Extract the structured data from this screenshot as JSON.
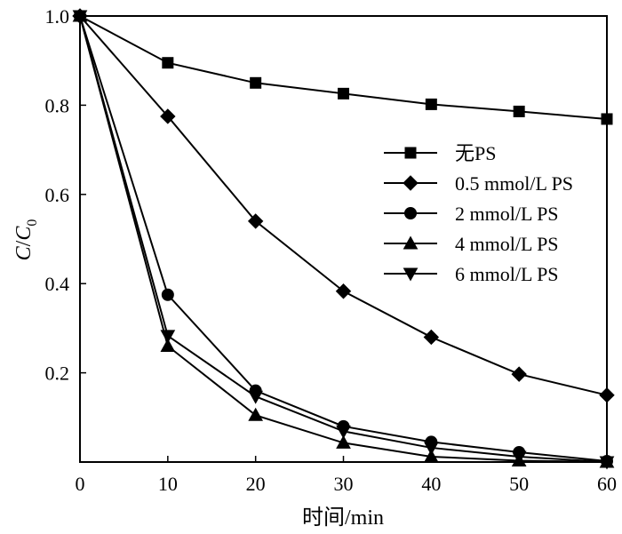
{
  "chart_data": {
    "type": "line",
    "xlabel": "时间/min",
    "ylabel_main": "C",
    "ylabel_slash": "/",
    "ylabel_denominator": "C",
    "ylabel_subscript": "0",
    "xlim": [
      0,
      60
    ],
    "ylim": [
      0,
      1.0
    ],
    "x_ticks": [
      0,
      10,
      20,
      30,
      40,
      50,
      60
    ],
    "x_tick_labels": [
      "0",
      "10",
      "20",
      "30",
      "40",
      "50",
      "60"
    ],
    "y_ticks": [
      0.2,
      0.4,
      0.6,
      0.8,
      1.0
    ],
    "y_tick_labels": [
      "0.2",
      "0.4",
      "0.6",
      "0.8",
      "1.0"
    ],
    "grid": false,
    "legend_position": "right-middle",
    "x": [
      0,
      10,
      20,
      30,
      40,
      50,
      60
    ],
    "series": [
      {
        "name": "无PS",
        "marker": "square",
        "values": [
          1.0,
          0.895,
          0.85,
          0.826,
          0.802,
          0.786,
          0.769
        ]
      },
      {
        "name": "0.5 mmol/L PS",
        "marker": "diamond",
        "values": [
          1.0,
          0.775,
          0.54,
          0.383,
          0.28,
          0.197,
          0.15
        ]
      },
      {
        "name": "2 mmol/L PS",
        "marker": "circle",
        "values": [
          1.0,
          0.375,
          0.16,
          0.08,
          0.045,
          0.022,
          0.002
        ]
      },
      {
        "name": "4 mmol/L PS",
        "marker": "triangle-up",
        "values": [
          1.0,
          0.26,
          0.105,
          0.043,
          0.012,
          0.003,
          0.0
        ]
      },
      {
        "name": "6 mmol/L PS",
        "marker": "triangle-down",
        "values": [
          1.0,
          0.283,
          0.147,
          0.069,
          0.032,
          0.012,
          0.0
        ]
      }
    ]
  }
}
